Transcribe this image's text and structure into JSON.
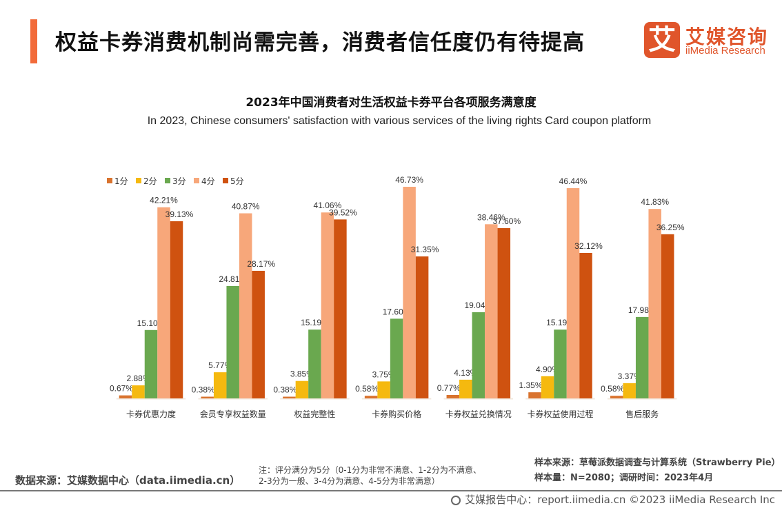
{
  "header": {
    "title": "权益卡券消费机制尚需完善，消费者信任度仍有待提高",
    "logo_mark": "艾",
    "logo_cn": "艾媒咨询",
    "logo_en": "iiMedia Research"
  },
  "chart_data": {
    "type": "bar",
    "title": "2023年中国消费者对生活权益卡券平台各项服务满意度",
    "subtitle": "In 2023, Chinese consumers' satisfaction with various services of the living rights Card coupon platform",
    "xlabel": "",
    "ylabel": "",
    "ylim": [
      0,
      50
    ],
    "grid": false,
    "legend_position": "top-left",
    "categories": [
      "卡券优惠力度",
      "会员专享权益数量",
      "权益完整性",
      "卡券购买价格",
      "卡券权益兑换情况",
      "卡券权益使用过程",
      "售后服务"
    ],
    "series": [
      {
        "name": "1分",
        "color": "#d9732e",
        "values": [
          0.67,
          0.38,
          0.38,
          0.58,
          0.77,
          1.35,
          0.58
        ]
      },
      {
        "name": "2分",
        "color": "#f5b90f",
        "values": [
          2.88,
          5.77,
          3.85,
          3.75,
          4.13,
          4.9,
          3.37
        ]
      },
      {
        "name": "3分",
        "color": "#6aa84f",
        "values": [
          15.1,
          24.81,
          15.19,
          17.6,
          19.04,
          15.19,
          17.98
        ]
      },
      {
        "name": "4分",
        "color": "#f7a77a",
        "values": [
          42.21,
          40.87,
          41.06,
          46.73,
          38.46,
          46.44,
          41.83
        ]
      },
      {
        "name": "5分",
        "color": "#cf5210",
        "values": [
          39.13,
          28.17,
          39.52,
          31.35,
          37.6,
          32.12,
          36.25
        ]
      }
    ],
    "value_suffix": "%"
  },
  "footer": {
    "source": "数据来源：艾媒数据中心（data.iimedia.cn）",
    "note_line1": "注：评分满分为5分（0-1分为非常不满意、1-2分为不满意、",
    "note_line2": "2-3分为一般、3-4分为满意、4-5分为非常满意）",
    "sample_source": "样本来源：草莓派数据调查与计算系统（Strawberry Pie）",
    "sample_size": "样本量：N=2080；调研时间：2023年4月",
    "report_center": "艾媒报告中心：report.iimedia.cn   ©2023  iiMedia Research  Inc"
  }
}
